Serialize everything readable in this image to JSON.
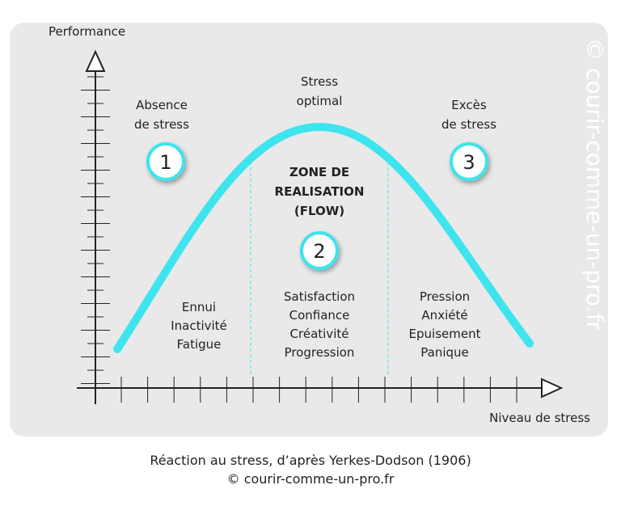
{
  "axes": {
    "y_label": "Performance",
    "x_label": "Niveau de stress"
  },
  "peak_label": [
    "Stress",
    "optimal"
  ],
  "zones": [
    {
      "number": 1,
      "title": [
        "Absence",
        "de stress"
      ],
      "items": [
        "Ennui",
        "Inactivité",
        "Fatigue"
      ]
    },
    {
      "number": 2,
      "title": [
        "ZONE DE",
        "REALISATION",
        "(FLOW)"
      ],
      "items": [
        "Satisfaction",
        "Confiance",
        "Créativité",
        "Progression"
      ]
    },
    {
      "number": 3,
      "title": [
        "Excès",
        "de stress"
      ],
      "items": [
        "Pression",
        "Anxiété",
        "Epuisement",
        "Panique"
      ]
    }
  ],
  "watermark": "© courir-comme-un-pro.fr",
  "caption": [
    "Réaction au stress, d’après Yerkes-Dodson (1906)",
    "© courir-comme-un-pro.fr"
  ]
}
